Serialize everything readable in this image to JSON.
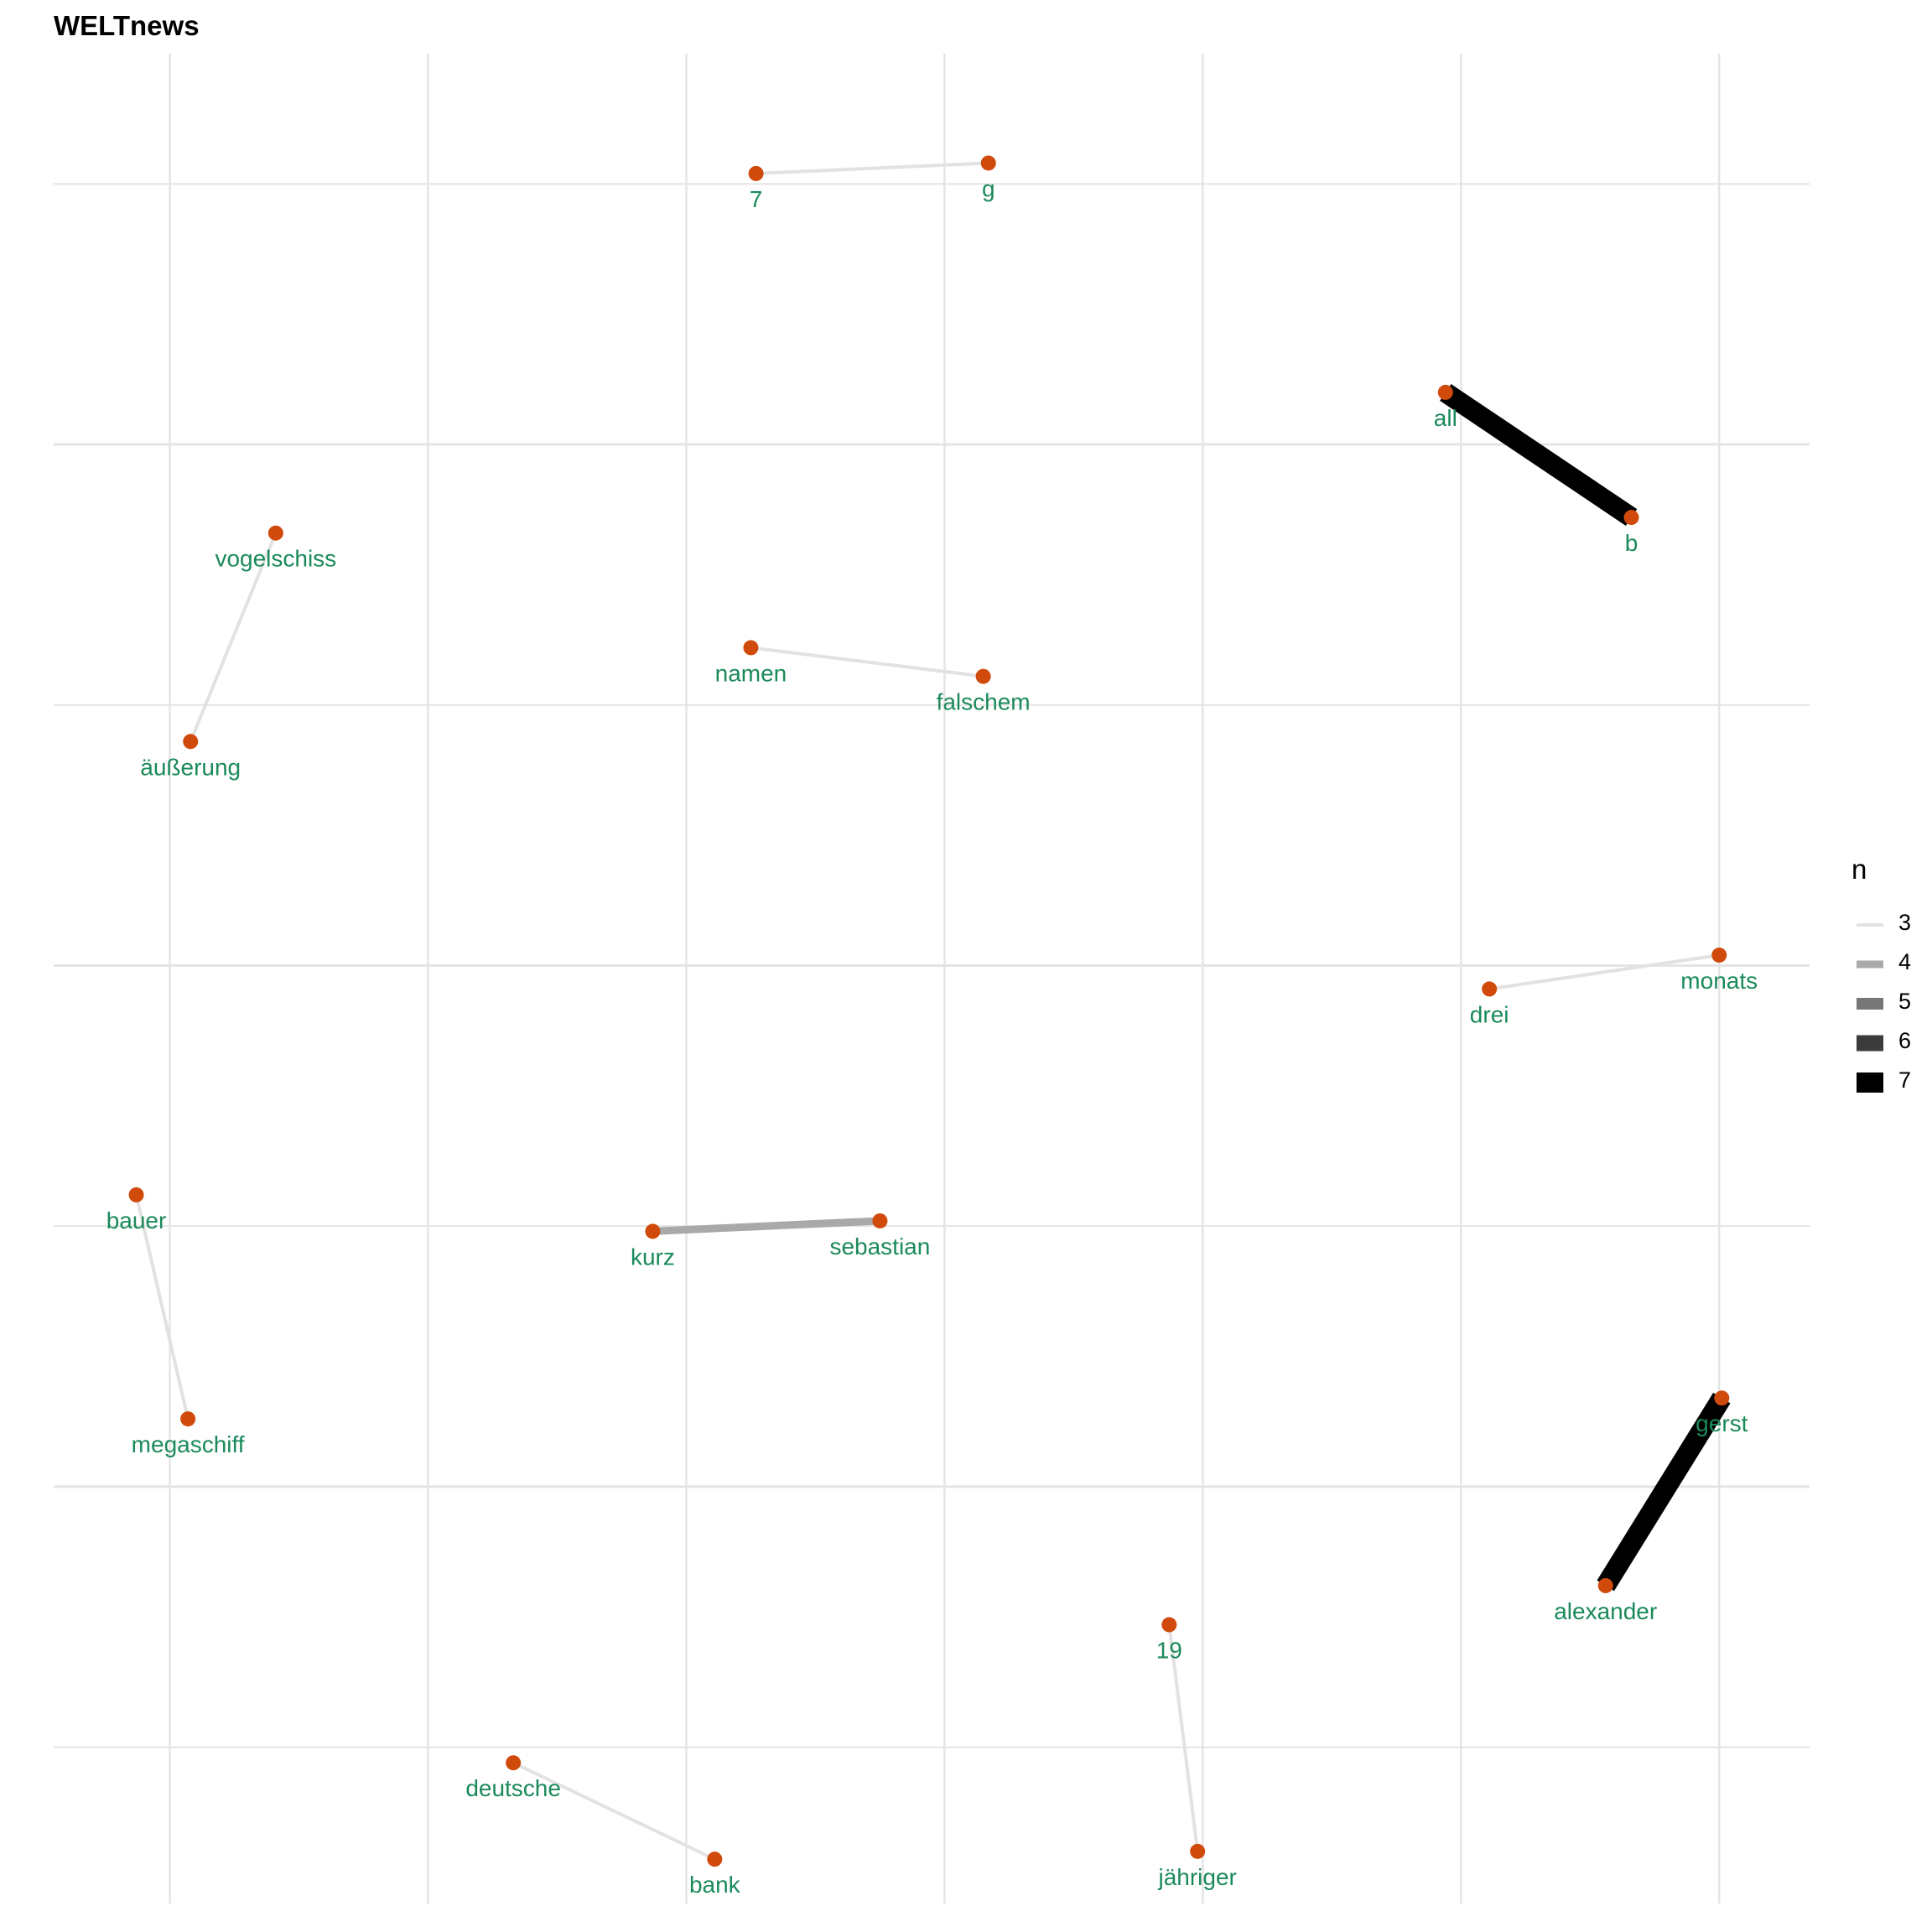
{
  "chart_data": {
    "type": "network",
    "title": "WELTnews",
    "legend": {
      "title": "n",
      "position": "right",
      "entries": [
        {
          "label": "3",
          "n": 3,
          "color": "#e2e2e2"
        },
        {
          "label": "4",
          "n": 4,
          "color": "#a9a9a9"
        },
        {
          "label": "5",
          "n": 5,
          "color": "#777777"
        },
        {
          "label": "6",
          "n": 6,
          "color": "#3b3b3b"
        },
        {
          "label": "7",
          "n": 7,
          "color": "#000000"
        }
      ]
    },
    "grid": true,
    "xlim": [
      -1.2,
      5.6
    ],
    "ylim": [
      -4.6,
      2.5
    ],
    "x_gridlines": [
      -0.75,
      0.25,
      1.25,
      2.25,
      3.25,
      4.25,
      5.25
    ],
    "y_gridlines": [
      2.0,
      1.0,
      0.0,
      -1.0,
      -2.0,
      -3.0,
      -4.0
    ],
    "nodes": [
      {
        "name": "7",
        "x": 1.52,
        "y": 2.04
      },
      {
        "name": "g",
        "x": 2.42,
        "y": 2.08
      },
      {
        "name": "all",
        "x": 4.19,
        "y": 1.2
      },
      {
        "name": "b",
        "x": 4.91,
        "y": 0.72
      },
      {
        "name": "vogelschiss",
        "x": -0.34,
        "y": 0.66
      },
      {
        "name": "äußerung",
        "x": -0.67,
        "y": -0.14
      },
      {
        "name": "namen",
        "x": 1.5,
        "y": 0.22
      },
      {
        "name": "falschem",
        "x": 2.4,
        "y": 0.11
      },
      {
        "name": "drei",
        "x": 4.36,
        "y": -1.09
      },
      {
        "name": "monats",
        "x": 5.25,
        "y": -0.96
      },
      {
        "name": "bauer",
        "x": -0.88,
        "y": -1.88
      },
      {
        "name": "megaschiff",
        "x": -0.68,
        "y": -2.74
      },
      {
        "name": "kurz",
        "x": 1.12,
        "y": -2.02
      },
      {
        "name": "sebastian",
        "x": 2.0,
        "y": -1.98
      },
      {
        "name": "gerst",
        "x": 5.26,
        "y": -2.66
      },
      {
        "name": "alexander",
        "x": 4.81,
        "y": -3.38
      },
      {
        "name": "19",
        "x": 3.12,
        "y": -3.53
      },
      {
        "name": "jähriger",
        "x": 3.23,
        "y": -4.4
      },
      {
        "name": "deutsche",
        "x": 0.58,
        "y": -4.06
      },
      {
        "name": "bank",
        "x": 1.36,
        "y": -4.43
      }
    ],
    "edges": [
      {
        "from": "7",
        "to": "g",
        "n": 3
      },
      {
        "from": "all",
        "to": "b",
        "n": 7
      },
      {
        "from": "vogelschiss",
        "to": "äußerung",
        "n": 3
      },
      {
        "from": "namen",
        "to": "falschem",
        "n": 3
      },
      {
        "from": "drei",
        "to": "monats",
        "n": 3
      },
      {
        "from": "bauer",
        "to": "megaschiff",
        "n": 3
      },
      {
        "from": "kurz",
        "to": "sebastian",
        "n": 4
      },
      {
        "from": "gerst",
        "to": "alexander",
        "n": 7
      },
      {
        "from": "19",
        "to": "jähriger",
        "n": 3
      },
      {
        "from": "deutsche",
        "to": "bank",
        "n": 3
      }
    ],
    "colors": {
      "node": "#d04a0c",
      "label": "#1b8a5a",
      "grid": "#e4e4e4"
    }
  }
}
